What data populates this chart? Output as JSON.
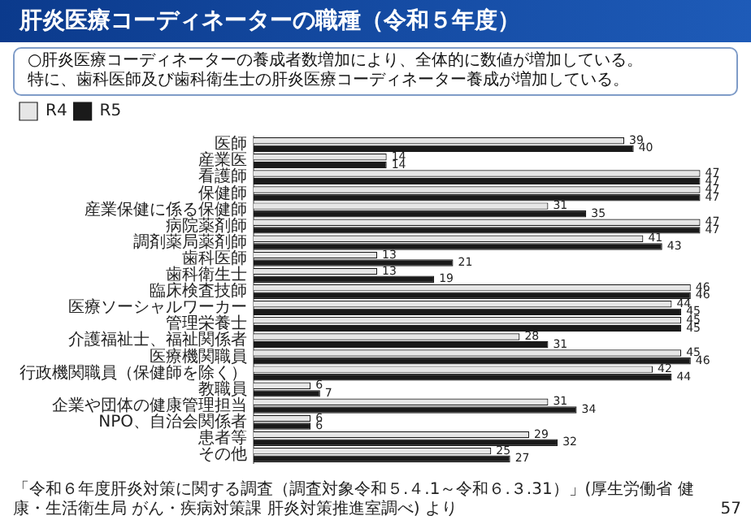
{
  "chart_data": {
    "type": "bar",
    "orientation": "horizontal",
    "title": "肝炎医療コーディネーターの職種（令和５年度）",
    "subtitle": "○肝炎医療コーディネーターの養成者数増加により、全体的に数値が増加している。特に、歯科医師及び歯科衛生士の肝炎医療コーディネーター養成が増加している。",
    "categories": [
      "医師",
      "産業医",
      "看護師",
      "保健師",
      "産業保健に係る保健師",
      "病院薬剤師",
      "調剤薬局薬剤師",
      "歯科医師",
      "歯科衛生士",
      "臨床検査技師",
      "医療ソーシャルワーカー",
      "管理栄養士",
      "介護福祉士、福祉関係者",
      "医療機関職員",
      "行政機関職員（保健師を除く）",
      "教職員",
      "企業や団体の健康管理担当",
      "NPO、自治会関係者",
      "患者等",
      "その他"
    ],
    "series": [
      {
        "name": "R4",
        "color": "#e6e6e6",
        "values": [
          39,
          14,
          47,
          47,
          31,
          47,
          41,
          13,
          13,
          46,
          44,
          45,
          28,
          45,
          42,
          6,
          31,
          6,
          29,
          25
        ]
      },
      {
        "name": "R5",
        "color": "#1a1a1a",
        "values": [
          40,
          14,
          47,
          47,
          35,
          47,
          43,
          21,
          19,
          46,
          45,
          45,
          31,
          46,
          44,
          7,
          34,
          6,
          32,
          27
        ]
      }
    ],
    "data_labels": true,
    "legend": "top left",
    "grid": false,
    "annotations": [
      "「令和６年度肝炎対策に関する調査（調査対象令和５.４.1～令和６.３.31）」(厚生労働省 健康・生活衛生局 がん・疾病対策課 肝炎対策推進室調べ) より",
      "57"
    ]
  }
}
